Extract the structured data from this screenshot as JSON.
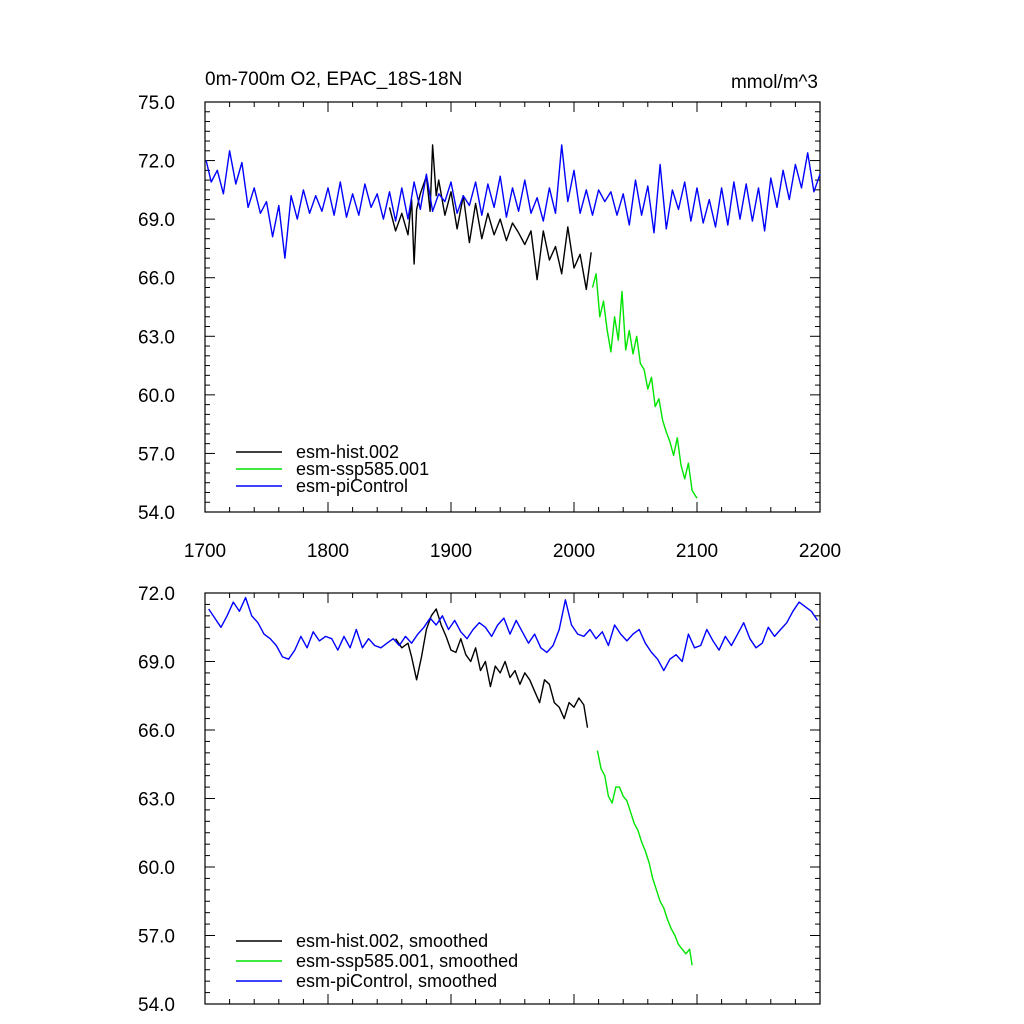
{
  "chart_data": [
    {
      "type": "line",
      "title": "0m-700m O2, EPAC_18S-18N",
      "units_label": "mmol/m^3",
      "xlim": [
        1700,
        2200
      ],
      "ylim": [
        54.0,
        75.0
      ],
      "x_ticks": [
        "1700",
        "1800",
        "1900",
        "2000",
        "2100",
        "2200"
      ],
      "y_ticks": [
        "54.0",
        "57.0",
        "60.0",
        "63.0",
        "66.0",
        "69.0",
        "72.0",
        "75.0"
      ],
      "grid": false,
      "legend_position": "bottom-left",
      "series": [
        {
          "name": "esm-hist.002",
          "color": "#000000",
          "x": [
            1850,
            1855,
            1860,
            1865,
            1868,
            1870,
            1872,
            1875,
            1880,
            1883,
            1885,
            1888,
            1890,
            1895,
            1900,
            1905,
            1910,
            1915,
            1920,
            1925,
            1930,
            1935,
            1940,
            1945,
            1950,
            1955,
            1960,
            1965,
            1970,
            1975,
            1980,
            1985,
            1990,
            1995,
            2000,
            2005,
            2010,
            2014
          ],
          "values": [
            69.6,
            68.4,
            69.3,
            68.2,
            70.0,
            66.7,
            69.5,
            70.3,
            71.2,
            69.4,
            72.8,
            70.2,
            71.0,
            69.2,
            70.4,
            68.5,
            70.2,
            67.8,
            69.8,
            68.0,
            69.3,
            68.2,
            69.0,
            67.9,
            68.8,
            68.3,
            67.7,
            68.4,
            65.9,
            68.4,
            66.9,
            67.6,
            66.2,
            68.6,
            66.5,
            67.2,
            65.4,
            67.3
          ]
        },
        {
          "name": "esm-ssp585.001",
          "color": "#00e400",
          "x": [
            2015,
            2018,
            2021,
            2024,
            2027,
            2030,
            2033,
            2036,
            2039,
            2042,
            2045,
            2048,
            2051,
            2054,
            2057,
            2060,
            2063,
            2066,
            2069,
            2072,
            2075,
            2078,
            2081,
            2084,
            2087,
            2090,
            2093,
            2096,
            2100
          ],
          "values": [
            65.5,
            66.2,
            64.0,
            64.8,
            63.3,
            62.2,
            64.0,
            62.8,
            65.3,
            62.3,
            63.3,
            62.1,
            63.0,
            61.6,
            61.3,
            60.3,
            60.9,
            59.4,
            59.8,
            58.7,
            58.1,
            57.6,
            56.9,
            57.8,
            56.4,
            55.7,
            56.5,
            55.1,
            54.7
          ]
        },
        {
          "name": "esm-piControl",
          "color": "#0000ff",
          "x": [
            1701,
            1705,
            1710,
            1715,
            1720,
            1725,
            1730,
            1735,
            1740,
            1745,
            1750,
            1755,
            1760,
            1765,
            1770,
            1775,
            1780,
            1785,
            1790,
            1795,
            1800,
            1805,
            1810,
            1815,
            1820,
            1825,
            1830,
            1835,
            1840,
            1845,
            1850,
            1855,
            1860,
            1865,
            1870,
            1875,
            1880,
            1885,
            1890,
            1895,
            1900,
            1905,
            1910,
            1915,
            1920,
            1925,
            1930,
            1935,
            1940,
            1945,
            1950,
            1955,
            1960,
            1965,
            1970,
            1975,
            1980,
            1985,
            1990,
            1995,
            2000,
            2005,
            2010,
            2015,
            2020,
            2025,
            2030,
            2035,
            2040,
            2045,
            2050,
            2055,
            2060,
            2065,
            2070,
            2075,
            2080,
            2085,
            2090,
            2095,
            2100,
            2105,
            2110,
            2115,
            2120,
            2125,
            2130,
            2135,
            2140,
            2145,
            2150,
            2155,
            2160,
            2165,
            2170,
            2175,
            2180,
            2185,
            2190,
            2195,
            2200
          ],
          "values": [
            72.0,
            70.9,
            71.5,
            70.3,
            72.5,
            70.8,
            71.9,
            69.6,
            70.6,
            69.3,
            69.9,
            68.1,
            69.7,
            67.0,
            70.2,
            69.0,
            70.5,
            69.3,
            70.2,
            69.4,
            70.6,
            69.2,
            70.9,
            69.1,
            70.3,
            69.2,
            70.8,
            69.6,
            70.3,
            69.0,
            70.4,
            68.9,
            70.6,
            69.0,
            70.9,
            69.5,
            71.3,
            69.4,
            70.3,
            69.9,
            70.9,
            69.3,
            70.2,
            69.7,
            70.9,
            69.2,
            70.8,
            69.6,
            71.2,
            69.1,
            70.6,
            69.4,
            71.0,
            69.3,
            70.1,
            68.9,
            70.6,
            69.3,
            72.8,
            69.9,
            71.5,
            69.3,
            70.5,
            69.2,
            70.5,
            69.9,
            70.4,
            69.2,
            70.3,
            68.7,
            71.0,
            69.2,
            70.7,
            68.3,
            71.8,
            68.5,
            70.5,
            69.5,
            70.9,
            68.9,
            70.6,
            68.8,
            70.0,
            68.6,
            70.6,
            68.7,
            70.9,
            69.0,
            70.8,
            68.9,
            70.6,
            68.4,
            71.1,
            69.6,
            71.5,
            70.0,
            71.8,
            70.6,
            72.4,
            70.4,
            71.3
          ]
        }
      ]
    },
    {
      "type": "line",
      "title": "",
      "xlim": [
        1700,
        2200
      ],
      "ylim": [
        54.0,
        72.0
      ],
      "y_ticks": [
        "54.0",
        "57.0",
        "60.0",
        "63.0",
        "66.0",
        "69.0",
        "72.0"
      ],
      "grid": false,
      "legend_position": "bottom-left",
      "series": [
        {
          "name": "esm-hist.002, smoothed",
          "color": "#000000",
          "x": [
            1855,
            1860,
            1865,
            1868,
            1872,
            1876,
            1880,
            1884,
            1888,
            1892,
            1896,
            1900,
            1904,
            1908,
            1912,
            1916,
            1920,
            1924,
            1928,
            1932,
            1936,
            1940,
            1944,
            1948,
            1952,
            1956,
            1960,
            1964,
            1968,
            1972,
            1976,
            1980,
            1984,
            1988,
            1992,
            1996,
            2000,
            2004,
            2008,
            2011
          ],
          "values": [
            70.0,
            69.6,
            69.8,
            69.2,
            68.2,
            69.2,
            70.4,
            71.0,
            71.3,
            70.6,
            70.1,
            69.5,
            69.4,
            70.0,
            69.3,
            69.0,
            69.6,
            68.6,
            69.0,
            67.9,
            68.8,
            68.5,
            69.0,
            68.3,
            68.6,
            68.0,
            68.5,
            68.2,
            67.7,
            67.2,
            68.2,
            68.0,
            67.2,
            67.0,
            66.5,
            67.2,
            67.0,
            67.4,
            67.1,
            66.1
          ]
        },
        {
          "name": "esm-ssp585.001, smoothed",
          "color": "#00e400",
          "x": [
            2019,
            2022,
            2025,
            2028,
            2031,
            2034,
            2037,
            2040,
            2043,
            2046,
            2049,
            2052,
            2055,
            2058,
            2061,
            2064,
            2067,
            2070,
            2073,
            2076,
            2079,
            2082,
            2085,
            2088,
            2091,
            2094,
            2096
          ],
          "values": [
            65.1,
            64.3,
            64.0,
            63.1,
            62.8,
            63.5,
            63.5,
            63.1,
            62.9,
            62.4,
            61.9,
            61.6,
            61.1,
            60.7,
            60.2,
            59.5,
            59.0,
            58.5,
            58.2,
            57.7,
            57.3,
            57.0,
            56.6,
            56.4,
            56.2,
            56.4,
            55.7
          ]
        },
        {
          "name": "esm-piControl, smoothed",
          "color": "#0000ff",
          "x": [
            1703,
            1708,
            1713,
            1718,
            1723,
            1728,
            1733,
            1738,
            1743,
            1748,
            1753,
            1758,
            1763,
            1768,
            1773,
            1778,
            1783,
            1788,
            1793,
            1798,
            1803,
            1808,
            1813,
            1818,
            1823,
            1828,
            1833,
            1838,
            1843,
            1848,
            1853,
            1858,
            1863,
            1868,
            1873,
            1878,
            1883,
            1888,
            1893,
            1898,
            1903,
            1908,
            1913,
            1918,
            1923,
            1928,
            1933,
            1938,
            1943,
            1948,
            1953,
            1958,
            1963,
            1968,
            1973,
            1978,
            1983,
            1988,
            1993,
            1998,
            2003,
            2008,
            2013,
            2018,
            2023,
            2028,
            2033,
            2038,
            2043,
            2048,
            2053,
            2058,
            2063,
            2068,
            2073,
            2078,
            2083,
            2088,
            2093,
            2098,
            2103,
            2108,
            2113,
            2118,
            2123,
            2128,
            2133,
            2138,
            2143,
            2148,
            2153,
            2158,
            2163,
            2168,
            2173,
            2178,
            2183,
            2188,
            2193,
            2198
          ],
          "values": [
            71.3,
            70.9,
            70.5,
            71.0,
            71.6,
            71.2,
            71.8,
            71.0,
            70.7,
            70.2,
            70.0,
            69.7,
            69.2,
            69.1,
            69.5,
            70.1,
            69.6,
            70.3,
            69.9,
            70.1,
            70.0,
            69.5,
            70.1,
            69.6,
            70.4,
            69.6,
            70.0,
            69.7,
            69.6,
            69.8,
            70.0,
            69.7,
            70.1,
            69.8,
            70.2,
            70.5,
            70.9,
            70.6,
            71.0,
            70.4,
            70.8,
            70.3,
            70.0,
            70.4,
            70.7,
            70.5,
            70.1,
            70.6,
            70.9,
            70.2,
            70.8,
            70.3,
            69.8,
            70.2,
            69.6,
            69.4,
            69.7,
            70.4,
            71.7,
            70.6,
            70.2,
            70.1,
            70.4,
            70.0,
            70.3,
            69.7,
            70.6,
            70.2,
            69.9,
            70.2,
            70.4,
            69.8,
            69.4,
            69.1,
            68.6,
            69.1,
            69.3,
            69.0,
            70.2,
            69.6,
            69.7,
            70.4,
            69.9,
            69.5,
            70.1,
            69.7,
            70.2,
            70.7,
            70.0,
            69.6,
            69.8,
            70.5,
            70.1,
            70.4,
            70.7,
            71.2,
            71.6,
            71.4,
            71.2,
            70.8
          ]
        }
      ]
    }
  ]
}
